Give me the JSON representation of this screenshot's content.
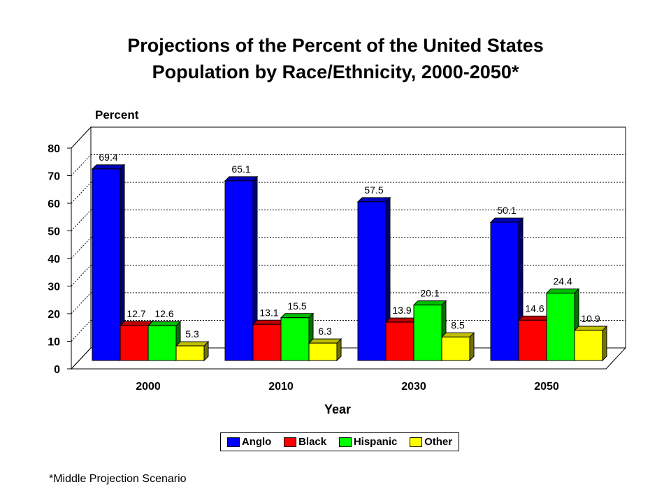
{
  "title_line1": "Projections of the Percent of the United States",
  "title_line2": "Population by Race/Ethnicity, 2000-2050*",
  "footnote": "*Middle Projection Scenario",
  "colors": {
    "Anglo": "#0000ff",
    "Black": "#ff0000",
    "Hispanic": "#00ff00",
    "Other": "#ffff00"
  },
  "chart_data": {
    "type": "bar",
    "title": "Projections of the Percent of the United States Population by Race/Ethnicity, 2000-2050*",
    "xlabel": "Year",
    "ylabel": "Percent",
    "categories": [
      "2000",
      "2010",
      "2030",
      "2050"
    ],
    "series": [
      {
        "name": "Anglo",
        "values": [
          69.4,
          65.1,
          57.5,
          50.1
        ]
      },
      {
        "name": "Black",
        "values": [
          12.7,
          13.1,
          13.9,
          14.6
        ]
      },
      {
        "name": "Hispanic",
        "values": [
          12.6,
          15.5,
          20.1,
          24.4
        ]
      },
      {
        "name": "Other",
        "values": [
          5.3,
          6.3,
          8.5,
          10.9
        ]
      }
    ],
    "ylim": [
      0,
      80
    ],
    "yticks": [
      0,
      10,
      20,
      30,
      40,
      50,
      60,
      70,
      80
    ],
    "grid": true,
    "legend": "bottom",
    "three_d": true
  }
}
